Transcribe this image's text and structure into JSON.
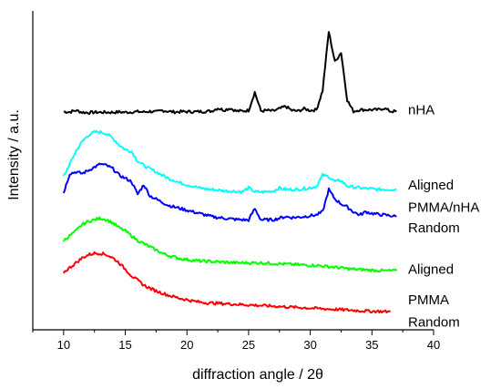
{
  "chart_data": {
    "type": "line",
    "title": "",
    "xlabel": "diffraction angle / 2θ",
    "ylabel": "Intensity / a.u.",
    "xlim": [
      7.5,
      40
    ],
    "ylim": [
      0,
      100
    ],
    "x_ticks": [
      10,
      15,
      20,
      25,
      30,
      35,
      40
    ],
    "y_ticks_shown": false,
    "grid": false,
    "x_step": 0.5,
    "series_labels": [
      {
        "text": "nHA",
        "y": 69.0
      },
      {
        "text": "Aligned",
        "y": 45.5
      },
      {
        "text": "PMMA/nHA",
        "y": 38.5
      },
      {
        "text": "Random",
        "y": 32.0
      },
      {
        "text": "Aligned",
        "y": 19.0
      },
      {
        "text": "PMMA",
        "y": 9.5
      },
      {
        "text": "Random",
        "y": 2.5
      }
    ],
    "series": [
      {
        "name": "",
        "color": "#000000",
        "x_start": 10,
        "values": [
          68.4,
          68.3,
          68.8,
          68.2,
          68.1,
          68.2,
          68.2,
          68.2,
          68.2,
          68.3,
          68.2,
          68.3,
          68.4,
          68.3,
          68.5,
          68.3,
          68.8,
          68.5,
          68.3,
          68.4,
          68.4,
          68.4,
          68.4,
          68.5,
          68.6,
          69.5,
          68.9,
          69.5,
          68.6,
          68.6,
          68.8,
          74.5,
          68.6,
          68.8,
          68.6,
          69.3,
          70.1,
          68.8,
          68.6,
          69.3,
          68.8,
          69.0,
          75.0,
          93.5,
          84.0,
          87.0,
          72.0,
          68.5,
          69.0,
          69.0,
          69.0,
          69.0,
          69.5,
          68.5,
          68.5
        ]
      },
      {
        "name": "",
        "color": "#00ffff",
        "x_start": 10,
        "values": [
          48.0,
          52.0,
          56.0,
          59.0,
          61.0,
          62.0,
          62.0,
          61.5,
          60.0,
          58.0,
          56.5,
          56.0,
          53.0,
          51.5,
          50.5,
          49.5,
          48.5,
          47.5,
          46.8,
          46.0,
          45.5,
          45.0,
          44.5,
          44.2,
          44.0,
          43.8,
          43.6,
          43.5,
          43.4,
          43.3,
          44.5,
          43.3,
          43.2,
          43.3,
          43.5,
          44.5,
          44.0,
          44.0,
          44.0,
          44.3,
          44.5,
          45.0,
          48.5,
          48.0,
          46.5,
          46.8,
          45.0,
          44.8,
          44.5,
          44.3,
          44.2,
          44.0,
          44.0,
          44.0,
          44.0
        ]
      },
      {
        "name": "",
        "color": "#0000ff",
        "x_start": 10,
        "values": [
          43.0,
          49.0,
          49.5,
          49.0,
          50.0,
          51.0,
          52.0,
          51.5,
          50.5,
          48.5,
          47.5,
          46.5,
          42.5,
          45.5,
          42.0,
          41.0,
          40.0,
          39.0,
          38.5,
          38.0,
          37.5,
          37.0,
          36.5,
          36.0,
          35.5,
          35.2,
          35.0,
          34.8,
          34.6,
          34.5,
          34.4,
          38.0,
          34.5,
          34.5,
          34.5,
          35.0,
          35.5,
          35.2,
          35.3,
          35.5,
          35.8,
          36.0,
          37.0,
          44.0,
          41.0,
          39.5,
          38.5,
          37.0,
          36.0,
          37.0,
          36.5,
          36.2,
          36.0,
          35.8,
          35.5
        ]
      },
      {
        "name": "",
        "color": "#00ff00",
        "x_start": 10,
        "values": [
          28.0,
          29.5,
          31.0,
          33.0,
          34.0,
          34.5,
          35.0,
          34.5,
          33.5,
          32.0,
          31.0,
          29.5,
          28.0,
          27.0,
          26.0,
          25.0,
          24.0,
          23.3,
          22.8,
          22.3,
          22.0,
          21.8,
          21.6,
          21.5,
          21.4,
          21.3,
          21.2,
          21.1,
          21.0,
          21.0,
          21.0,
          21.0,
          21.0,
          20.9,
          20.8,
          20.7,
          20.6,
          20.5,
          20.4,
          20.3,
          20.2,
          20.2,
          20.0,
          19.8,
          19.6,
          19.4,
          19.2,
          19.0,
          18.9,
          18.8,
          18.7,
          18.6,
          18.5,
          18.5,
          18.5
        ]
      },
      {
        "name": "",
        "color": "#ff0000",
        "x_start": 10,
        "values": [
          18.0,
          19.5,
          21.0,
          22.5,
          23.5,
          24.0,
          24.0,
          23.5,
          22.5,
          21.0,
          19.0,
          17.0,
          15.5,
          14.0,
          13.0,
          12.2,
          11.5,
          10.8,
          10.3,
          9.8,
          9.4,
          9.0,
          8.7,
          8.5,
          8.4,
          8.3,
          8.2,
          8.1,
          8.0,
          7.9,
          7.8,
          7.7,
          7.6,
          7.5,
          7.4,
          7.3,
          7.2,
          7.1,
          7.0,
          6.9,
          6.8,
          6.7,
          6.6,
          6.5,
          6.4,
          6.3,
          6.2,
          6.1,
          6.0,
          5.9,
          5.8,
          5.8,
          5.7,
          5.7
        ]
      }
    ]
  }
}
